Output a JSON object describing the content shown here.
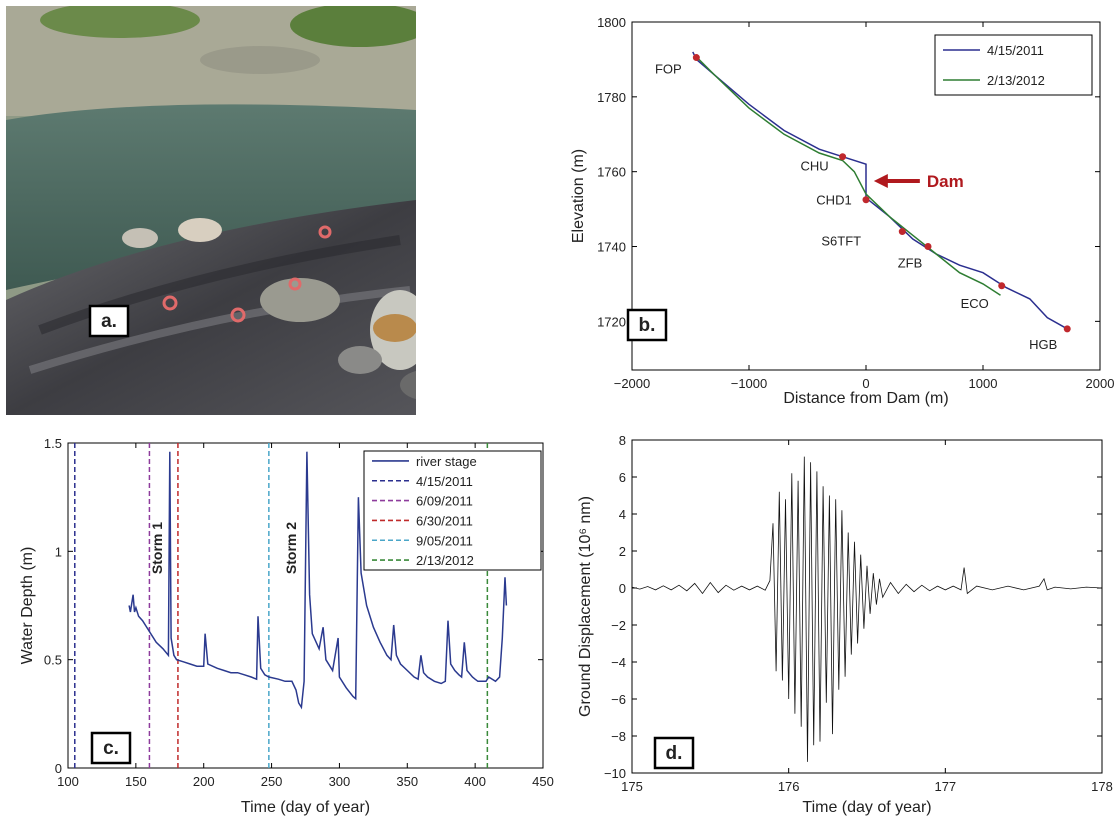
{
  "photo": {
    "panel_label": "a."
  },
  "chart_data": [
    {
      "type": "line",
      "panel_label": "b.",
      "xlabel": "Distance from Dam (m)",
      "ylabel": "Elevation (m)",
      "xlim": [
        -2000,
        2000
      ],
      "xticks": [
        {
          "value": -2000,
          "label": "−2000"
        },
        {
          "value": -1000,
          "label": "−1000"
        },
        0,
        1000,
        2000
      ],
      "ylim": [
        1707,
        1800
      ],
      "yticks": [
        1720,
        1740,
        1760,
        1780,
        1800
      ],
      "legend": "upper right",
      "series": [
        {
          "name": "4/15/2011",
          "color": "#2b2f8f",
          "x": [
            -1480,
            -1450,
            -1300,
            -1000,
            -700,
            -400,
            -200,
            0,
            0,
            200,
            400,
            600,
            800,
            1000,
            1200,
            1400,
            1550,
            1720
          ],
          "values": [
            1792,
            1790,
            1786,
            1778,
            1771,
            1766,
            1764,
            1762,
            1753,
            1748,
            1742,
            1738,
            1735,
            1733,
            1729,
            1726,
            1721,
            1718
          ]
        },
        {
          "name": "2/13/2012",
          "color": "#2e7d32",
          "x": [
            -1460,
            -1300,
            -1000,
            -700,
            -400,
            -200,
            -100,
            0,
            200,
            400,
            600,
            800,
            1000,
            1150
          ],
          "values": [
            1791,
            1786,
            1777,
            1770,
            1765,
            1763,
            1760,
            1754,
            1748,
            1743,
            1738,
            1733,
            1730,
            1727
          ]
        }
      ],
      "stations": {
        "color": "#c0282d",
        "names": [
          "FOP",
          "CHU",
          "CHD1",
          "S6TFT",
          "ZFB",
          "ECO",
          "HGB"
        ],
        "x": [
          -1450,
          -200,
          0,
          310,
          530,
          1160,
          1720
        ],
        "y": [
          1790.5,
          1764,
          1752.5,
          1744,
          1740,
          1729.5,
          1718
        ]
      },
      "annotation": "Dam",
      "annotation_color": "#b0191e"
    },
    {
      "type": "line",
      "panel_label": "c.",
      "xlabel": "Time (day of year)",
      "ylabel": "Water Depth (m)",
      "xlim": [
        100,
        450
      ],
      "xticks": [
        100,
        150,
        200,
        250,
        300,
        350,
        400,
        450
      ],
      "ylim": [
        0,
        1.5
      ],
      "yticks": [
        0,
        0.5,
        1,
        1.5
      ],
      "legend": "upper right",
      "series": [
        {
          "name": "river stage",
          "color": "#2b3a8f",
          "x": [
            145,
            146,
            148,
            149,
            150,
            152,
            155,
            160,
            165,
            170,
            174,
            175,
            176,
            178,
            180,
            185,
            190,
            195,
            200,
            201,
            203,
            210,
            215,
            220,
            225,
            230,
            235,
            239,
            240,
            242,
            245,
            248,
            255,
            260,
            265,
            268,
            270,
            272,
            274,
            276,
            278,
            280,
            285,
            288,
            290,
            295,
            299,
            300,
            305,
            310,
            312,
            314,
            316,
            320,
            325,
            330,
            335,
            338,
            340,
            342,
            345,
            350,
            355,
            358,
            360,
            362,
            365,
            370,
            375,
            378,
            380,
            382,
            385,
            388,
            390,
            392,
            394,
            398,
            400,
            402,
            405,
            408,
            410,
            415,
            418,
            420,
            422,
            423
          ],
          "values": [
            0.75,
            0.72,
            0.8,
            0.72,
            0.74,
            0.7,
            0.68,
            0.63,
            0.58,
            0.55,
            0.52,
            1.46,
            0.6,
            0.52,
            0.5,
            0.49,
            0.48,
            0.47,
            0.47,
            0.62,
            0.48,
            0.46,
            0.45,
            0.44,
            0.44,
            0.43,
            0.42,
            0.41,
            0.7,
            0.46,
            0.43,
            0.42,
            0.41,
            0.4,
            0.4,
            0.36,
            0.3,
            0.28,
            0.4,
            1.46,
            0.8,
            0.62,
            0.55,
            0.65,
            0.5,
            0.45,
            0.6,
            0.42,
            0.37,
            0.33,
            0.32,
            1.25,
            0.9,
            0.75,
            0.65,
            0.58,
            0.52,
            0.5,
            0.66,
            0.52,
            0.48,
            0.45,
            0.42,
            0.41,
            0.52,
            0.44,
            0.42,
            0.4,
            0.39,
            0.4,
            0.68,
            0.48,
            0.45,
            0.43,
            0.42,
            0.58,
            0.45,
            0.42,
            0.41,
            0.4,
            0.4,
            0.4,
            0.42,
            0.4,
            0.42,
            0.6,
            0.88,
            0.75
          ]
        }
      ],
      "events": [
        {
          "label": "4/15/2011",
          "x": 105,
          "color": "#2b2f8f"
        },
        {
          "label": "6/09/2011",
          "x": 160,
          "color": "#8e3c9c"
        },
        {
          "label": "6/30/2011",
          "x": 181,
          "color": "#c02a2a"
        },
        {
          "label": "9/05/2011",
          "x": 248,
          "color": "#4aa6c8"
        },
        {
          "label": "2/13/2012",
          "x": 409,
          "color": "#3a8a3a"
        }
      ],
      "annotations": [
        "Storm 1",
        "Storm 2"
      ]
    },
    {
      "type": "line",
      "panel_label": "d.",
      "xlabel": "Time (day of year)",
      "ylabel": "Ground Displacement (10⁶ nm)",
      "xlim": [
        175,
        178
      ],
      "xticks": [
        175,
        176,
        177,
        178
      ],
      "ylim": [
        -10,
        8
      ],
      "yticks": [
        {
          "value": -10,
          "label": "−10"
        },
        {
          "value": -8,
          "label": "−8"
        },
        {
          "value": -6,
          "label": "−6"
        },
        {
          "value": -4,
          "label": "−4"
        },
        {
          "value": -2,
          "label": "−2"
        },
        0,
        2,
        4,
        6,
        8
      ],
      "series": [
        {
          "color": "#111111",
          "x": [
            175,
            175.05,
            175.1,
            175.15,
            175.2,
            175.25,
            175.3,
            175.35,
            175.4,
            175.45,
            175.5,
            175.55,
            175.6,
            175.65,
            175.7,
            175.75,
            175.8,
            175.85,
            175.88,
            175.9,
            175.92,
            175.94,
            175.96,
            175.98,
            176,
            176.02,
            176.04,
            176.06,
            176.08,
            176.1,
            176.12,
            176.14,
            176.16,
            176.18,
            176.2,
            176.22,
            176.24,
            176.26,
            176.28,
            176.3,
            176.32,
            176.34,
            176.36,
            176.38,
            176.4,
            176.42,
            176.44,
            176.46,
            176.48,
            176.5,
            176.52,
            176.54,
            176.56,
            176.58,
            176.6,
            176.65,
            176.7,
            176.75,
            176.8,
            176.85,
            176.9,
            176.95,
            177,
            177.05,
            177.1,
            177.12,
            177.14,
            177.2,
            177.3,
            177.4,
            177.5,
            177.6,
            177.63,
            177.65,
            177.7,
            177.8,
            177.9,
            178
          ],
          "values": [
            0.05,
            -0.06,
            0.08,
            -0.1,
            0.12,
            -0.1,
            0.15,
            -0.15,
            0.25,
            -0.3,
            0.3,
            -0.25,
            0.15,
            -0.12,
            0.1,
            -0.1,
            0.1,
            -0.12,
            0.4,
            3.5,
            -4.5,
            5.2,
            -5,
            4.8,
            -6,
            6.2,
            -6.8,
            5.8,
            -7.5,
            7.1,
            -9.4,
            6.8,
            -8.5,
            6.3,
            -8.3,
            5.5,
            -6.2,
            5,
            -7.9,
            4.8,
            -5.5,
            4.2,
            -4.8,
            3,
            -3.6,
            2.5,
            -3,
            1.8,
            -2.2,
            1.2,
            -1.4,
            0.8,
            -0.9,
            0.5,
            -0.5,
            0.3,
            -0.3,
            0.2,
            -0.2,
            0.15,
            -0.15,
            0.1,
            -0.1,
            0.1,
            -0.1,
            1.1,
            -0.3,
            0.1,
            -0.1,
            0.1,
            -0.1,
            0.1,
            0.5,
            -0.1,
            0.05,
            -0.05,
            0.05,
            0
          ]
        }
      ]
    }
  ]
}
